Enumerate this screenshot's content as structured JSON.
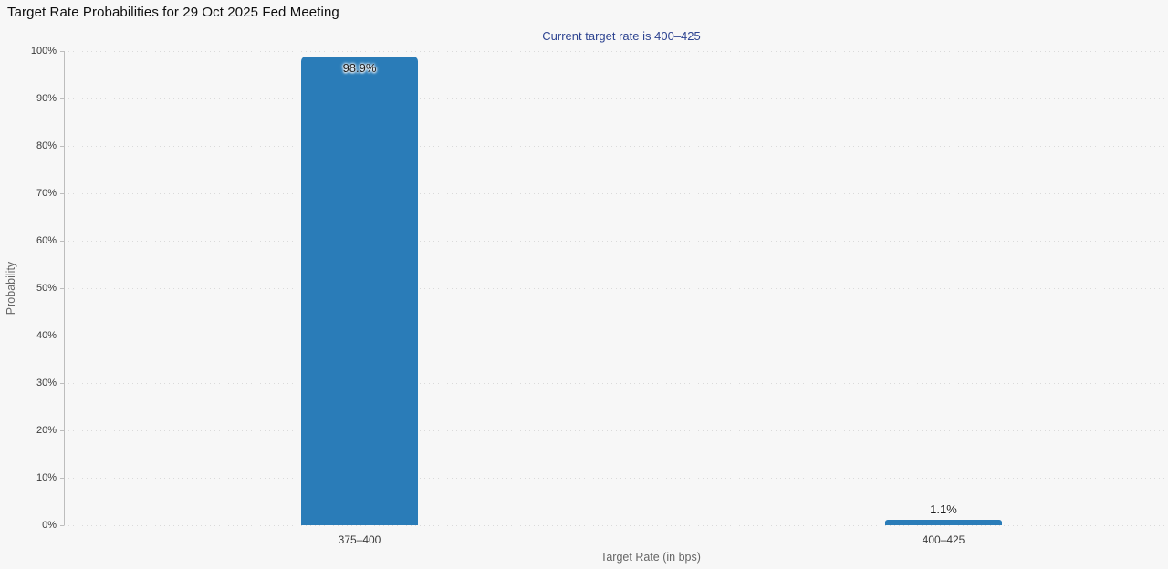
{
  "chart_data": {
    "type": "bar",
    "title": "Target Rate Probabilities for 29 Oct 2025 Fed Meeting",
    "subtitle": "Current target rate is 400–425",
    "xlabel": "Target Rate (in bps)",
    "ylabel": "Probability",
    "categories": [
      "375–400",
      "400–425"
    ],
    "values": [
      98.9,
      1.1
    ],
    "value_labels": [
      "98.9%",
      "1.1%"
    ],
    "yticks": [
      0,
      10,
      20,
      30,
      40,
      50,
      60,
      70,
      80,
      90,
      100
    ],
    "ytick_suffix": "%",
    "ylim": [
      0,
      100
    ],
    "grid": "dotted-horizontal",
    "legend": "none",
    "bar_color": "#2a7cb8",
    "subtitle_color": "#2e4491",
    "background_color": "#f7f7f7"
  }
}
